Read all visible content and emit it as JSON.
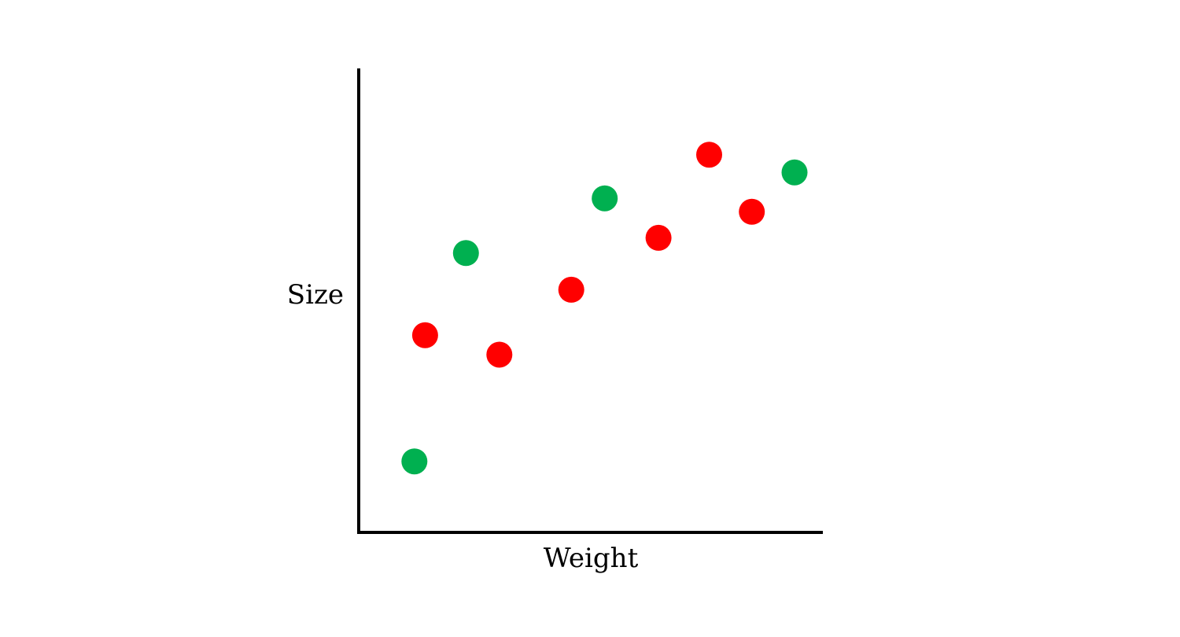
{
  "chart_data": {
    "type": "scatter",
    "title": "",
    "xlabel": "Weight",
    "ylabel": "Size",
    "xlim": [
      0,
      10
    ],
    "ylim": [
      0,
      10
    ],
    "grid": false,
    "ticks": false,
    "legend": "none",
    "series": [
      {
        "color": "#ff0000",
        "points": [
          {
            "x": 1.43,
            "y": 4.25
          },
          {
            "x": 3.03,
            "y": 3.83
          },
          {
            "x": 4.58,
            "y": 5.23
          },
          {
            "x": 6.46,
            "y": 6.35
          },
          {
            "x": 7.55,
            "y": 8.14
          },
          {
            "x": 8.47,
            "y": 6.91
          }
        ]
      },
      {
        "color": "#00b050",
        "points": [
          {
            "x": 1.2,
            "y": 1.53
          },
          {
            "x": 2.31,
            "y": 6.02
          },
          {
            "x": 5.3,
            "y": 7.2
          },
          {
            "x": 9.39,
            "y": 7.76
          }
        ]
      }
    ]
  }
}
